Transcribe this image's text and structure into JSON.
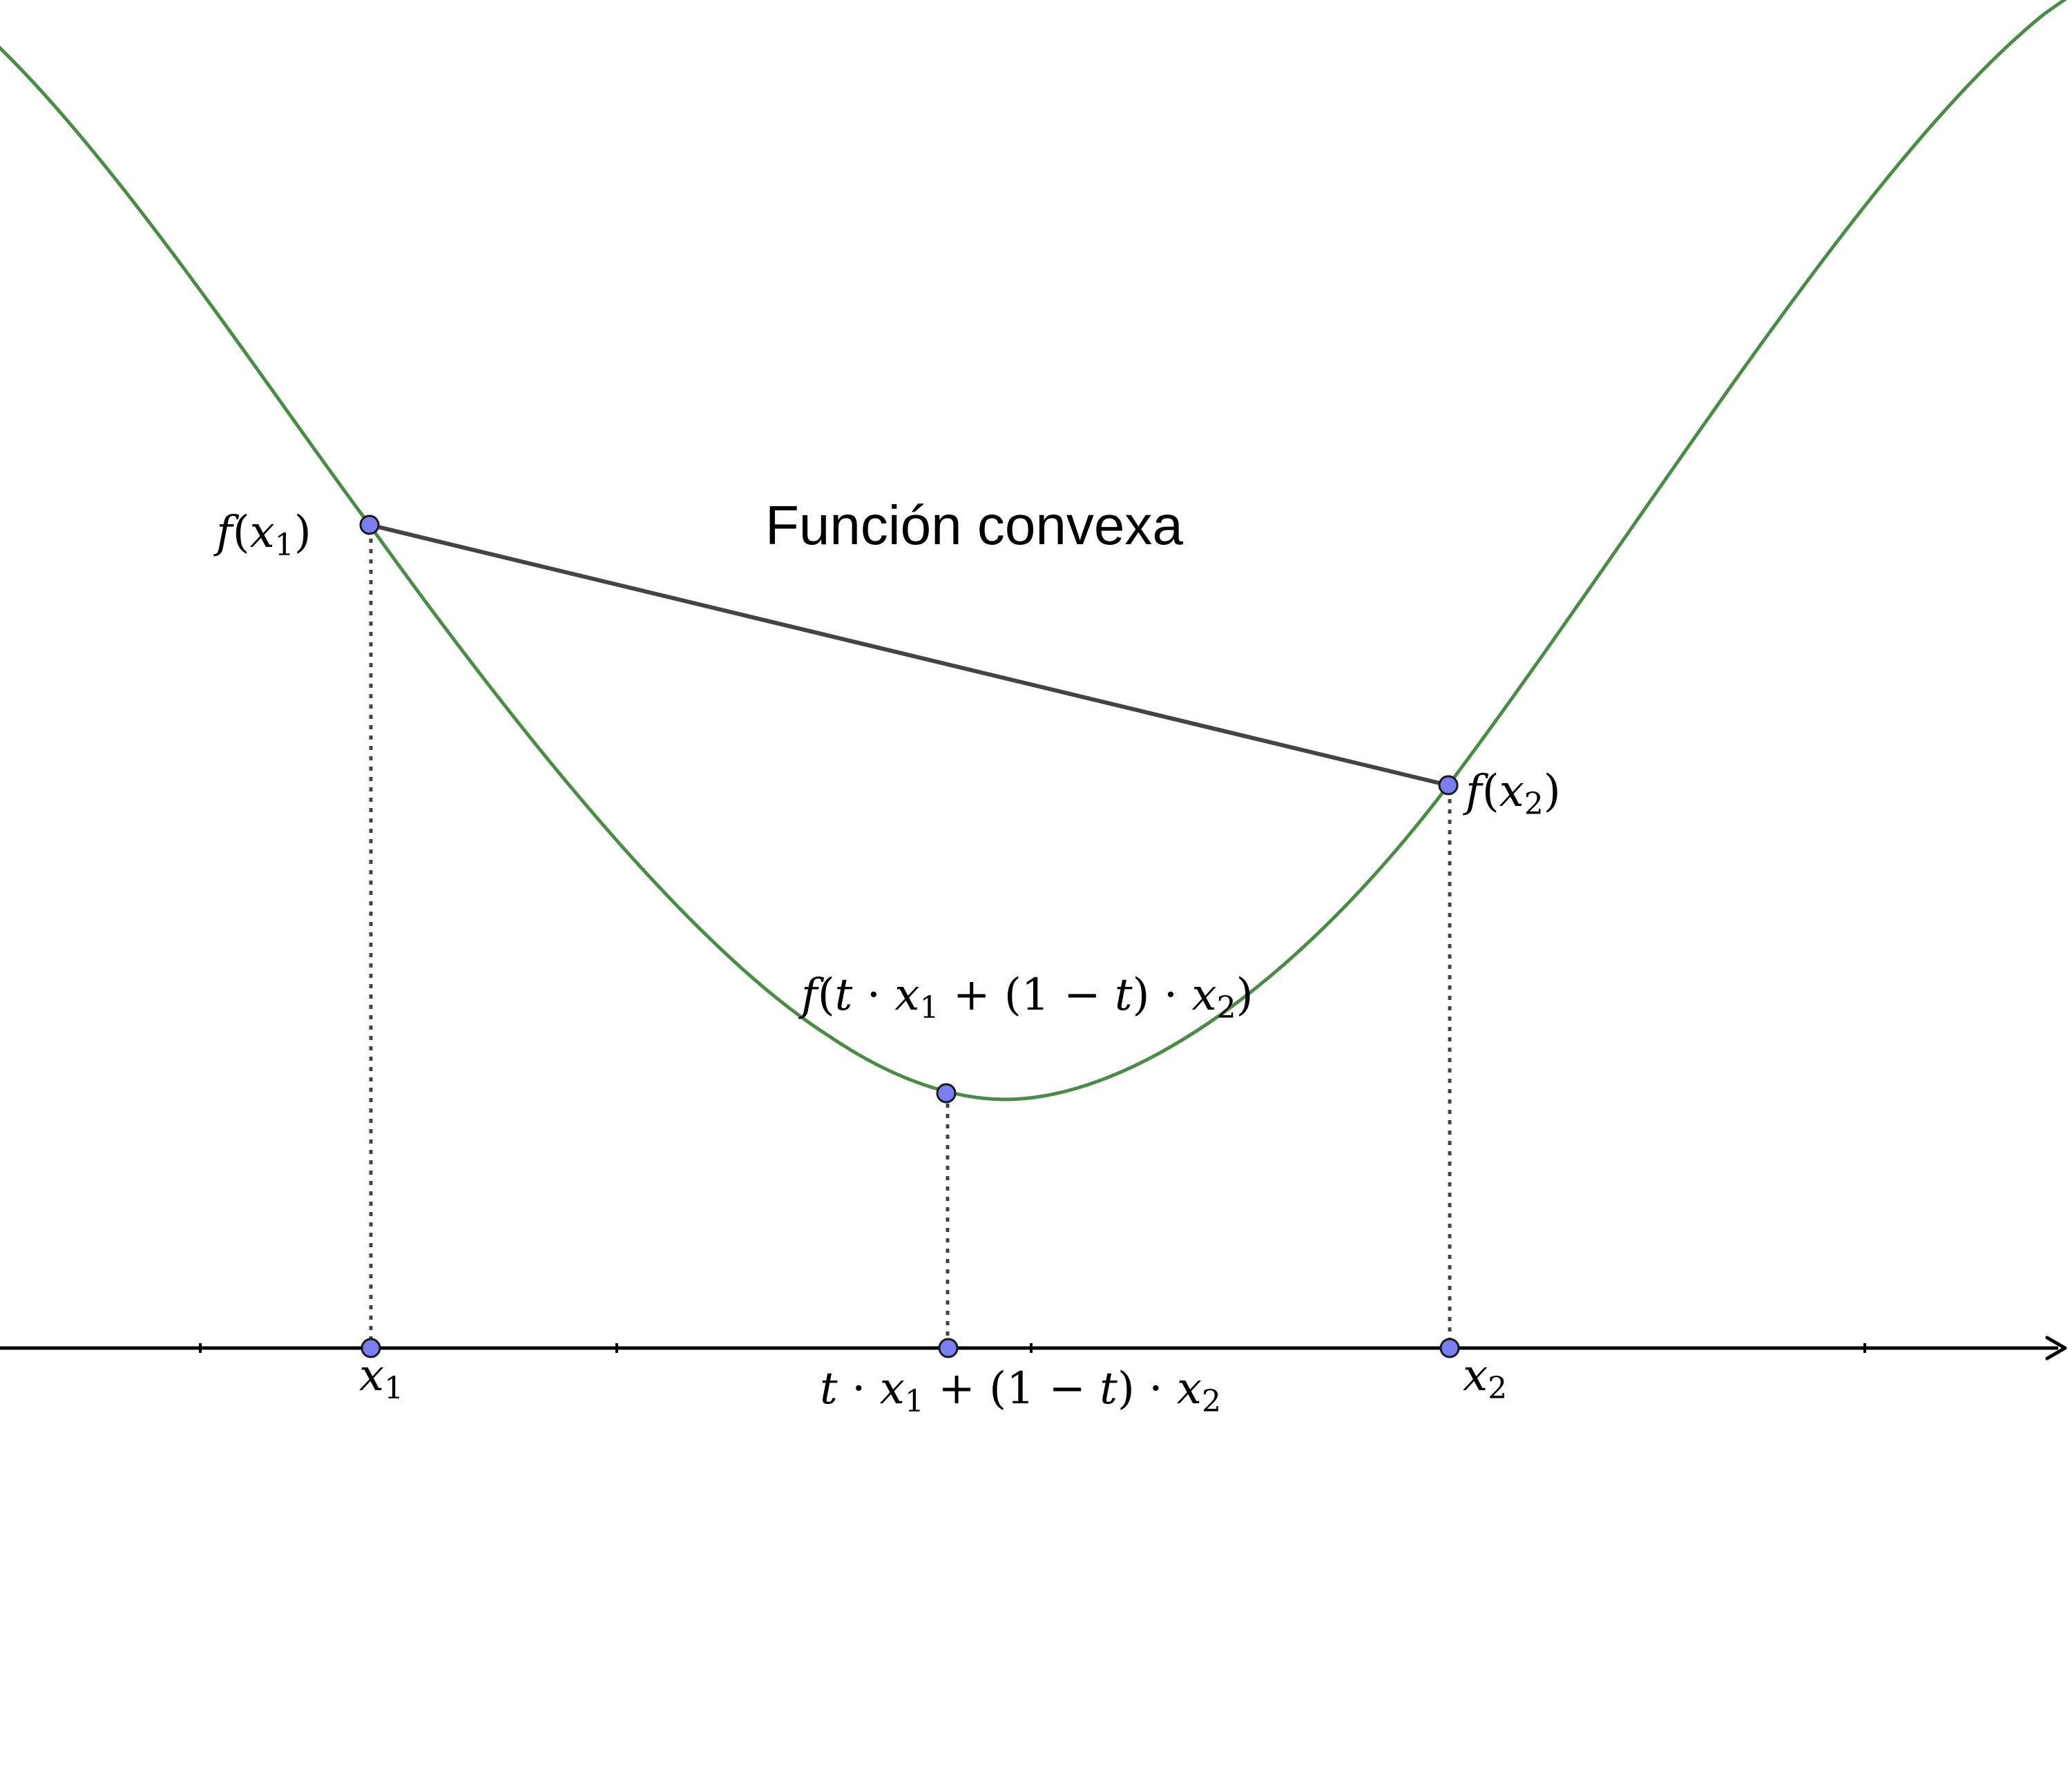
{
  "diagram": {
    "title": "Función convexa",
    "colors": {
      "curve": "#4a8c45",
      "chord": "#444444",
      "point": "#7b7ef0",
      "axis": "#000000"
    },
    "labels": {
      "f_x1": {
        "f": "f",
        "open": "(",
        "var": "x",
        "sub": "1",
        "close": ")"
      },
      "f_x2": {
        "f": "f",
        "open": "(",
        "var": "x",
        "sub": "2",
        "close": ")"
      },
      "f_combo": {
        "f": "f",
        "open": "(",
        "t1": "t",
        "dot1": " · ",
        "x1": "x",
        "sub1": "1",
        "plus": " + (1 − ",
        "t2": "t",
        "close1": ") · ",
        "x2": "x",
        "sub2": "2",
        "close2": ")"
      },
      "x1": {
        "var": "x",
        "sub": "1"
      },
      "x2": {
        "var": "x",
        "sub": "2"
      },
      "combo": {
        "t1": "t",
        "dot1": " · ",
        "x1": "x",
        "sub1": "1",
        "plus": " + (1 − ",
        "t2": "t",
        "close1": ") · ",
        "x2": "x",
        "sub2": "2"
      }
    }
  }
}
